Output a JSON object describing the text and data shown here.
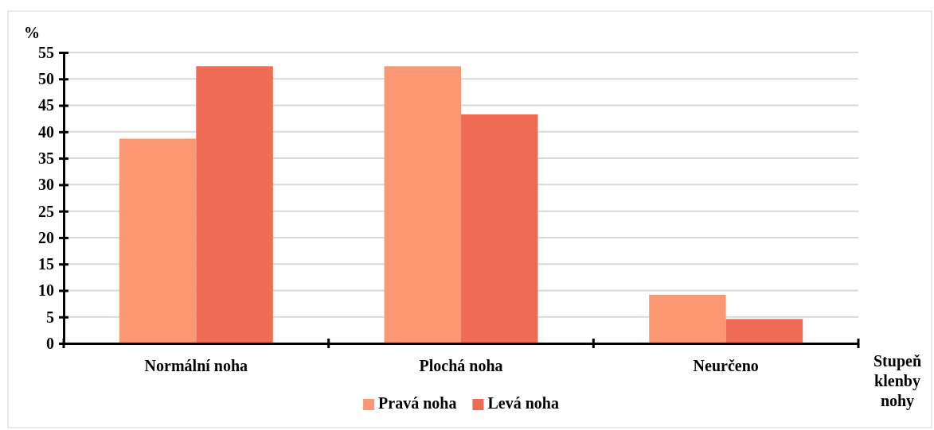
{
  "chart_data": {
    "type": "bar",
    "xlabel": "Stupeň klenby nohy",
    "ylabel": "%",
    "categories": [
      "Normální noha",
      "Plochá noha",
      "Neurčeno"
    ],
    "series": [
      {
        "name": "Pravá noha",
        "color": "#fc9774",
        "values": [
          38.7,
          52.4,
          9.2
        ]
      },
      {
        "name": "Levá noha",
        "color": "#f06b53",
        "values": [
          52.4,
          43.3,
          4.6
        ]
      }
    ],
    "ylim": [
      0,
      55
    ],
    "yticks": [
      0,
      5,
      10,
      15,
      20,
      25,
      30,
      35,
      40,
      45,
      50,
      55
    ],
    "grid": "y",
    "legend": "bottom"
  }
}
